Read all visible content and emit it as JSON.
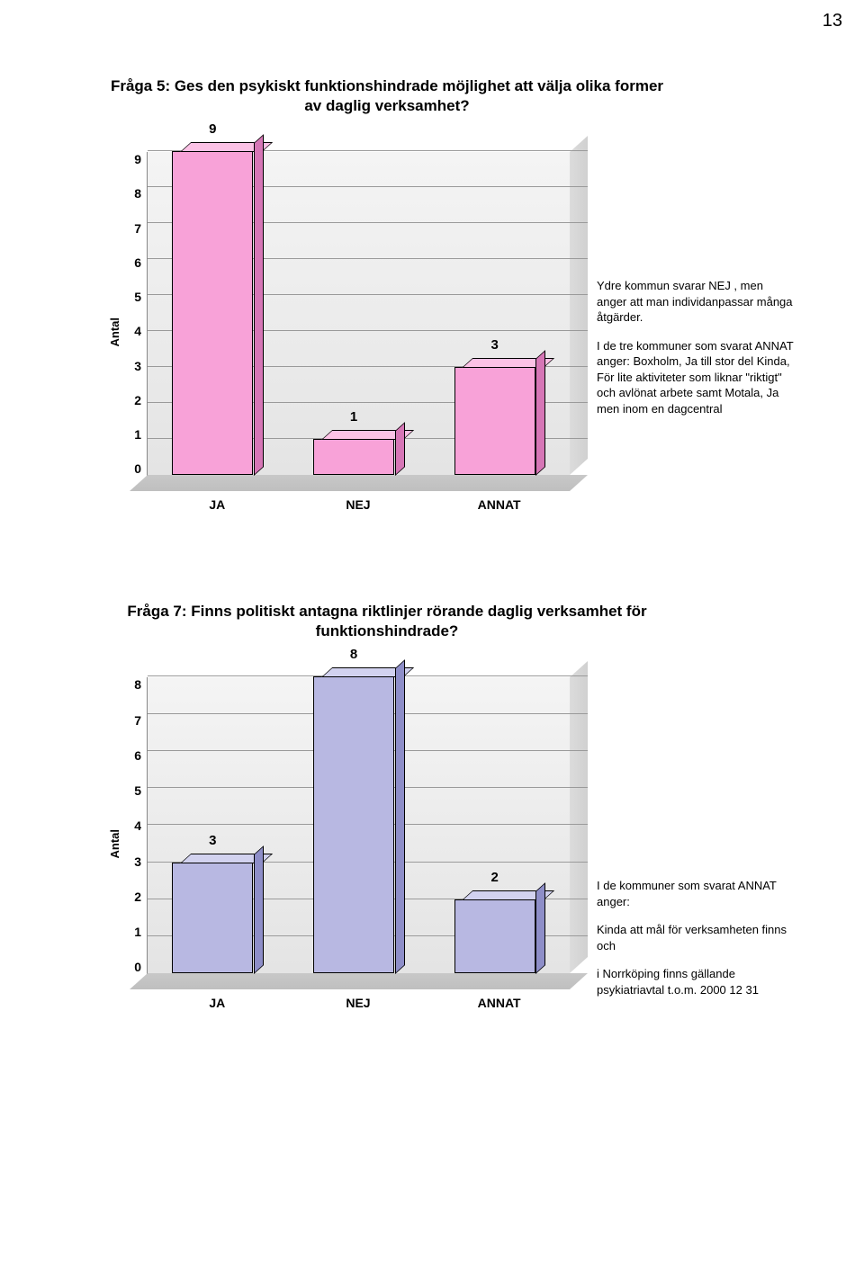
{
  "page_number": "13",
  "chart1": {
    "title": "Fråga 5: Ges den psykiskt funktionshindrade möjlighet att välja olika former av daglig verksamhet?",
    "y_label": "Antal",
    "y_ticks": [
      "0",
      "1",
      "2",
      "3",
      "4",
      "5",
      "6",
      "7",
      "8",
      "9"
    ],
    "y_max": 9,
    "categories": [
      "JA",
      "NEJ",
      "ANNAT"
    ],
    "values": [
      9,
      1,
      3
    ],
    "bar_face": "#f8a2d8",
    "bar_top": "#fcc2e6",
    "bar_side": "#d676b6",
    "note1": "Ydre kommun svarar NEJ , men anger att man individanpassar många åtgärder.",
    "note2": "I de tre kommuner som svarat  ANNAT anger: Boxholm,  Ja till stor del Kinda,  För lite aktiviteter som liknar \"riktigt\" och avlönat arbete  samt Motala, Ja men inom en dagcentral"
  },
  "chart2": {
    "title": "Fråga 7: Finns politiskt antagna riktlinjer rörande daglig verksamhet för funktionshindrade?",
    "y_label": "Antal",
    "y_ticks": [
      "0",
      "1",
      "2",
      "3",
      "4",
      "5",
      "6",
      "7",
      "8"
    ],
    "y_max": 8,
    "categories": [
      "JA",
      "NEJ",
      "ANNAT"
    ],
    "values": [
      3,
      8,
      2
    ],
    "bar_face": "#b8b8e2",
    "bar_top": "#d2d2ef",
    "bar_side": "#8e8ec8",
    "note1": "I de kommuner som svarat ANNAT anger:",
    "note2": "Kinda att mål för verksamheten  finns och",
    "note3": "i Norrköping finns gällande  psykiatriavtal t.o.m. 2000 12 31"
  }
}
